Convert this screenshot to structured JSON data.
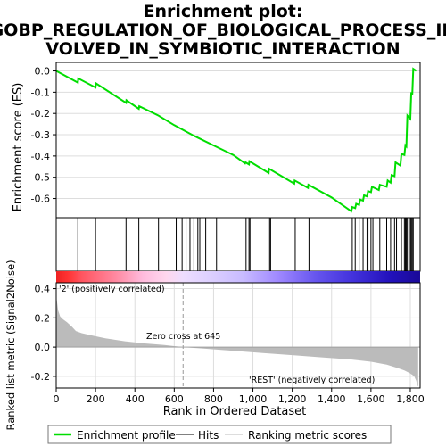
{
  "title_lines": [
    "Enrichment plot:",
    "GOBP_REGULATION_OF_BIOLOGICAL_PROCESS_IN",
    "VOLVED_IN_SYMBIOTIC_INTERACTION"
  ],
  "colors": {
    "es_line": "#00dd00",
    "hits": "#000000",
    "metric_fill": "#bbbbbb",
    "zero_cross_line": "#999999",
    "pos_label": "#cc0000",
    "neg_label": "#0000cc"
  },
  "chart_data": [
    {
      "type": "line",
      "panel": "enrichment-profile",
      "ylabel": "Enrichment score (ES)",
      "xlim": [
        0,
        1850
      ],
      "ylim": [
        -0.69,
        0.04
      ],
      "yticks": [
        0.0,
        -0.1,
        -0.2,
        -0.3,
        -0.4,
        -0.5,
        -0.6
      ],
      "ytick_labels": [
        "0.0",
        "-0.1",
        "-0.2",
        "-0.3",
        "-0.4",
        "-0.5",
        "-0.6"
      ],
      "grid": true,
      "series": [
        {
          "name": "Enrichment profile",
          "x": [
            0,
            110,
            112,
            200,
            202,
            355,
            357,
            420,
            422,
            520,
            600,
            700,
            800,
            900,
            960,
            962,
            980,
            982,
            1080,
            1082,
            1210,
            1212,
            1280,
            1282,
            1400,
            1500,
            1505,
            1520,
            1525,
            1540,
            1545,
            1560,
            1565,
            1580,
            1585,
            1600,
            1605,
            1640,
            1645,
            1680,
            1685,
            1700,
            1705,
            1720,
            1725,
            1750,
            1755,
            1770,
            1775,
            1780,
            1785,
            1800,
            1805,
            1810,
            1815,
            1830
          ],
          "y": [
            0.0,
            -0.055,
            -0.035,
            -0.078,
            -0.058,
            -0.15,
            -0.138,
            -0.178,
            -0.166,
            -0.21,
            -0.255,
            -0.305,
            -0.35,
            -0.395,
            -0.435,
            -0.43,
            -0.44,
            -0.425,
            -0.48,
            -0.46,
            -0.53,
            -0.515,
            -0.55,
            -0.535,
            -0.595,
            -0.66,
            -0.64,
            -0.645,
            -0.625,
            -0.63,
            -0.605,
            -0.61,
            -0.585,
            -0.59,
            -0.565,
            -0.57,
            -0.545,
            -0.56,
            -0.535,
            -0.545,
            -0.515,
            -0.525,
            -0.49,
            -0.495,
            -0.43,
            -0.445,
            -0.39,
            -0.395,
            -0.35,
            -0.355,
            -0.21,
            -0.225,
            -0.1,
            -0.11,
            0.01,
            0.0
          ]
        }
      ]
    },
    {
      "type": "scatter",
      "panel": "hits",
      "series": [
        {
          "name": "Hits",
          "x": [
            110,
            200,
            355,
            420,
            520,
            610,
            640,
            660,
            680,
            700,
            720,
            730,
            760,
            815,
            965,
            980,
            985,
            1085,
            1090,
            1215,
            1285,
            1505,
            1520,
            1540,
            1560,
            1580,
            1585,
            1600,
            1610,
            1645,
            1680,
            1700,
            1720,
            1730,
            1755,
            1770,
            1775,
            1780,
            1785,
            1800,
            1805,
            1810,
            1815
          ]
        }
      ]
    },
    {
      "type": "heatmap",
      "panel": "ranked-list-colorbar",
      "stops": [
        {
          "rank": 0,
          "color": "#ee2222"
        },
        {
          "rank": 60,
          "color": "#ff3333"
        },
        {
          "rank": 130,
          "color": "#ff5560"
        },
        {
          "rank": 300,
          "color": "#ff88a0"
        },
        {
          "rank": 440,
          "color": "#ffbbdd"
        },
        {
          "rank": 560,
          "color": "#ffd7ee"
        },
        {
          "rank": 645,
          "color": "#eeddff"
        },
        {
          "rank": 780,
          "color": "#ddd0ff"
        },
        {
          "rank": 950,
          "color": "#c8bbff"
        },
        {
          "rank": 1130,
          "color": "#9f88ff"
        },
        {
          "rank": 1320,
          "color": "#6655ee"
        },
        {
          "rank": 1500,
          "color": "#4433dd"
        },
        {
          "rank": 1700,
          "color": "#2211bb"
        },
        {
          "rank": 1840,
          "color": "#1a0a99"
        }
      ]
    },
    {
      "type": "area",
      "panel": "ranked-metric",
      "xlabel": "Rank in Ordered Dataset",
      "ylabel": "Ranked list metric (Signal2Noise)",
      "xlim": [
        0,
        1850
      ],
      "ylim": [
        -0.28,
        0.44
      ],
      "yticks": [
        0.4,
        0.2,
        0.0,
        -0.2
      ],
      "ytick_labels": [
        "0.4",
        "0.2",
        "0.0",
        "-0.2"
      ],
      "xticks": [
        0,
        200,
        400,
        600,
        800,
        1000,
        1200,
        1400,
        1600,
        1800
      ],
      "xtick_labels": [
        "0",
        "200",
        "400",
        "600",
        "800",
        "1,000",
        "1,200",
        "1,400",
        "1,600",
        "1,800"
      ],
      "grid": true,
      "x": [
        0,
        5,
        10,
        20,
        35,
        55,
        80,
        100,
        130,
        180,
        250,
        350,
        450,
        550,
        645,
        750,
        900,
        1050,
        1200,
        1350,
        1500,
        1600,
        1680,
        1730,
        1770,
        1800,
        1820,
        1830,
        1835,
        1840
      ],
      "y": [
        0.35,
        0.3,
        0.25,
        0.21,
        0.19,
        0.17,
        0.14,
        0.11,
        0.095,
        0.08,
        0.06,
        0.04,
        0.025,
        0.015,
        0.0,
        -0.01,
        -0.025,
        -0.04,
        -0.055,
        -0.07,
        -0.085,
        -0.1,
        -0.12,
        -0.14,
        -0.16,
        -0.18,
        -0.2,
        -0.23,
        -0.26,
        -0.27
      ],
      "zero_cross_rank": 645,
      "annotations": [
        "'2' (positively correlated)",
        "Zero cross at 645",
        "'REST' (negatively correlated)"
      ]
    }
  ],
  "legend": {
    "placement": "bottom",
    "items": [
      {
        "label": "Enrichment profile",
        "color": "#00dd00"
      },
      {
        "label": "Hits",
        "color": "#000000"
      },
      {
        "label": "Ranking metric scores",
        "color": "#bbbbbb"
      }
    ]
  }
}
